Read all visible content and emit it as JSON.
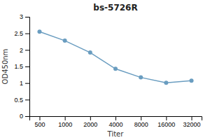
{
  "chart_data": {
    "type": "line",
    "title": "bs-5726R",
    "xlabel": "Titer",
    "ylabel": "OD450nm",
    "categories": [
      "500",
      "1000",
      "2000",
      "4000",
      "8000",
      "16000",
      "32000"
    ],
    "values": [
      2.55,
      2.28,
      1.92,
      1.43,
      1.17,
      1.01,
      1.07
    ],
    "color": "#6a9dc0",
    "marker": "circle",
    "ylim": [
      0,
      3
    ],
    "yticks": [
      0,
      0.5,
      1,
      1.5,
      2,
      2.5,
      3
    ],
    "grid": false
  }
}
